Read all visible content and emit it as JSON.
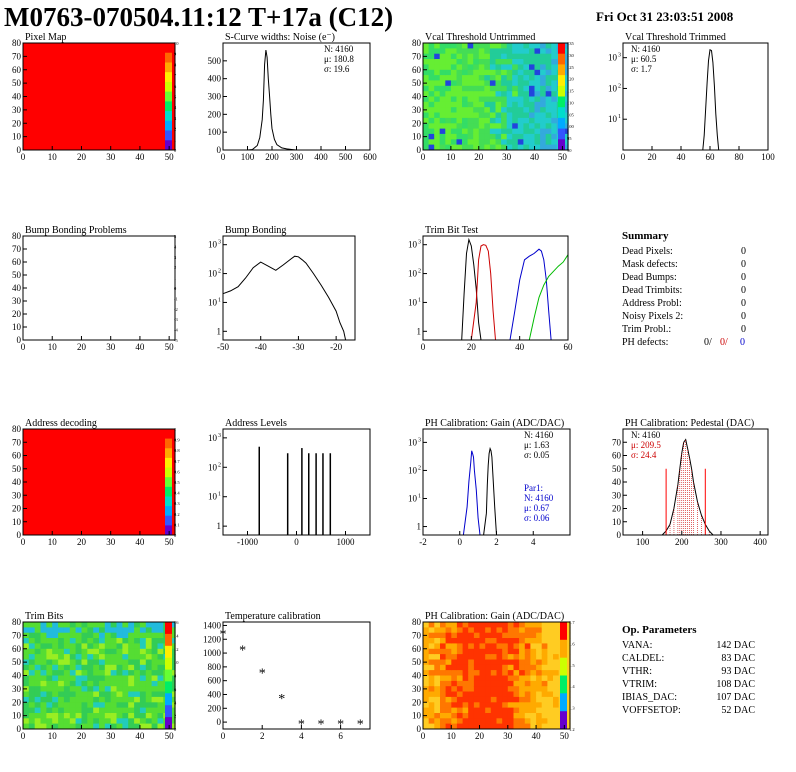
{
  "header": {
    "title": "M0763-070504.11:12 T+17a (C12)",
    "date": "Fri Oct 31 23:03:51 2008"
  },
  "summary": {
    "title": "Summary",
    "rows": [
      {
        "label": "Dead Pixels:",
        "value": "0"
      },
      {
        "label": "Mask defects:",
        "value": "0"
      },
      {
        "label": "Dead Bumps:",
        "value": "0"
      },
      {
        "label": "Dead Trimbits:",
        "value": "0"
      },
      {
        "label": "Address Probl:",
        "value": "0"
      },
      {
        "label": "Noisy Pixels 2:",
        "value": "0"
      },
      {
        "label": "Trim Probl.:",
        "value": "0"
      }
    ],
    "ph_label": "PH defects:",
    "ph_values": [
      {
        "text": "0/",
        "color": "#000000"
      },
      {
        "text": "0/",
        "color": "#cc0000"
      },
      {
        "text": "0",
        "color": "#0000cc"
      }
    ]
  },
  "op_parameters": {
    "title": "Op. Parameters",
    "rows": [
      {
        "label": "VANA:",
        "value": "142 DAC"
      },
      {
        "label": "CALDEL:",
        "value": "83 DAC"
      },
      {
        "label": "VTHR:",
        "value": "93 DAC"
      },
      {
        "label": "VTRIM:",
        "value": "108 DAC"
      },
      {
        "label": "IBIAS_DAC:",
        "value": "107 DAC"
      },
      {
        "label": "VOFFSETOP:",
        "value": "52 DAC"
      }
    ]
  },
  "colors": {
    "red": "#ff0000",
    "blue": "#0000cc",
    "green": "#00bb00",
    "dark_red": "#cc0000"
  },
  "chart_data": [
    {
      "id": "pixel-map",
      "type": "heatmap",
      "title": "Pixel Map",
      "xlim": [
        0,
        52
      ],
      "ylim": [
        0,
        80
      ],
      "xticks": [
        0,
        10,
        20,
        30,
        40,
        50
      ],
      "yticks": [
        0,
        10,
        20,
        30,
        40,
        50,
        60,
        70,
        80
      ],
      "fill": "uniform",
      "fill_color": "#ff0000",
      "palette_labels": [
        "10",
        "9",
        "8",
        "7",
        "6",
        "5",
        "4",
        "3",
        "2",
        "1",
        "0"
      ]
    },
    {
      "id": "scurve",
      "type": "line",
      "title": "S-Curve widths: Noise (e⁻)",
      "xlim": [
        0,
        600
      ],
      "ylim": [
        0,
        600
      ],
      "xticks": [
        0,
        100,
        200,
        300,
        400,
        500,
        600
      ],
      "yticks": [
        0,
        100,
        200,
        300,
        400,
        500
      ],
      "stats": [
        "N: 4160",
        "μ: 180.8",
        "σ: 19.6"
      ],
      "x": [
        100,
        120,
        140,
        150,
        160,
        165,
        170,
        175,
        180,
        185,
        190,
        195,
        200,
        210,
        220,
        240,
        260,
        280,
        300
      ],
      "y": [
        0,
        3,
        25,
        70,
        170,
        280,
        480,
        560,
        520,
        400,
        300,
        200,
        120,
        60,
        30,
        12,
        6,
        3,
        0
      ]
    },
    {
      "id": "vcal-untrimmed",
      "type": "heatmap",
      "title": "Vcal Threshold Untrimmed",
      "xlim": [
        0,
        52
      ],
      "ylim": [
        0,
        80
      ],
      "xticks": [
        0,
        10,
        20,
        30,
        40,
        50
      ],
      "yticks": [
        0,
        10,
        20,
        30,
        40,
        50,
        60,
        70,
        80
      ],
      "fill": "noise-gradient",
      "palette_labels": [
        "135",
        "130",
        "125",
        "120",
        "115",
        "110",
        "105",
        "100",
        "95",
        "90"
      ]
    },
    {
      "id": "vcal-trimmed",
      "type": "line",
      "title": "Vcal Threshold Trimmed",
      "yscale": "log",
      "xlim": [
        0,
        100
      ],
      "ylim": [
        1,
        3000
      ],
      "xticks": [
        0,
        20,
        40,
        60,
        80,
        100
      ],
      "yticks": [
        10,
        100,
        1000
      ],
      "stats": [
        "N: 4160",
        "μ: 60.5",
        "σ:  1.7"
      ],
      "x": [
        55,
        56,
        57,
        58,
        59,
        60,
        61,
        62,
        63,
        64,
        65,
        66
      ],
      "y": [
        1,
        3,
        20,
        150,
        800,
        1800,
        1700,
        700,
        120,
        15,
        3,
        1
      ]
    },
    {
      "id": "bump-problems",
      "type": "heatmap",
      "title": "Bump Bonding Problems",
      "xlim": [
        0,
        52
      ],
      "ylim": [
        0,
        80
      ],
      "xticks": [
        0,
        10,
        20,
        30,
        40,
        50
      ],
      "yticks": [
        0,
        10,
        20,
        30,
        40,
        50,
        60,
        70,
        80
      ],
      "fill": "empty",
      "palette_labels": [
        "5",
        "4",
        "3",
        "2",
        "1",
        "0",
        "-1",
        "-2",
        "-3",
        "-4",
        "-5"
      ]
    },
    {
      "id": "bump-bonding",
      "type": "line",
      "title": "Bump Bonding",
      "yscale": "log",
      "xlim": [
        -50,
        -15
      ],
      "ylim": [
        0.5,
        2000
      ],
      "xticks": [
        -50,
        -40,
        -30,
        -20
      ],
      "yticks": [
        1,
        10,
        100,
        1000
      ],
      "x": [
        -50,
        -48,
        -46,
        -44,
        -42,
        -40,
        -38,
        -36,
        -34,
        -32,
        -31,
        -30,
        -29,
        -28,
        -26,
        -24,
        -22,
        -20,
        -19,
        -18,
        -17.5
      ],
      "y": [
        20,
        25,
        35,
        70,
        160,
        250,
        180,
        130,
        200,
        320,
        400,
        380,
        300,
        230,
        100,
        40,
        15,
        5,
        2,
        1,
        0.5
      ]
    },
    {
      "id": "trim-bit-test",
      "type": "line",
      "title": "Trim Bit Test",
      "yscale": "log",
      "xlim": [
        0,
        60
      ],
      "ylim": [
        0.5,
        2000
      ],
      "xticks": [
        0,
        20,
        40,
        60
      ],
      "yticks": [
        1,
        10,
        100,
        1000
      ],
      "series": [
        {
          "color": "#000000",
          "x": [
            16,
            17,
            18,
            19,
            20,
            21,
            22,
            23,
            24
          ],
          "y": [
            0.5,
            20,
            500,
            1500,
            900,
            200,
            30,
            2,
            0.5
          ]
        },
        {
          "color": "#cc0000",
          "x": [
            20,
            22,
            23,
            24,
            25,
            26,
            27,
            28,
            29,
            30
          ],
          "y": [
            0.5,
            10,
            300,
            900,
            1000,
            950,
            600,
            100,
            5,
            0.5
          ]
        },
        {
          "color": "#0000cc",
          "x": [
            36,
            38,
            40,
            42,
            44,
            46,
            48,
            49,
            50,
            51,
            52,
            53
          ],
          "y": [
            0.5,
            5,
            60,
            300,
            400,
            500,
            700,
            600,
            300,
            60,
            5,
            0.5
          ]
        },
        {
          "color": "#00bb00",
          "x": [
            0,
            44,
            46,
            48,
            50,
            52,
            54,
            56,
            58,
            60
          ],
          "y": [
            0.5,
            0.5,
            3,
            15,
            40,
            80,
            120,
            180,
            250,
            450
          ]
        }
      ]
    },
    {
      "id": "address-decoding",
      "type": "heatmap",
      "title": "Address decoding",
      "xlim": [
        0,
        52
      ],
      "ylim": [
        0,
        80
      ],
      "xticks": [
        0,
        10,
        20,
        30,
        40,
        50
      ],
      "yticks": [
        0,
        10,
        20,
        30,
        40,
        50,
        60,
        70,
        80
      ],
      "fill": "uniform",
      "fill_color": "#ff0000",
      "palette_labels": [
        "1",
        "0.9",
        "0.8",
        "0.7",
        "0.6",
        "0.5",
        "0.4",
        "0.3",
        "0.2",
        "0.1",
        "0"
      ]
    },
    {
      "id": "address-levels",
      "type": "line",
      "title": "Address Levels",
      "yscale": "log",
      "xlim": [
        -1500,
        1500
      ],
      "ylim": [
        0.5,
        2000
      ],
      "xticks": [
        -1000,
        0,
        1000
      ],
      "yticks": [
        1,
        10,
        100,
        1000
      ],
      "spikes_x": [
        -760,
        -180,
        110,
        250,
        400,
        540,
        690
      ],
      "spikes_h": [
        500,
        300,
        450,
        300,
        300,
        300,
        300
      ]
    },
    {
      "id": "ph-gain",
      "type": "line",
      "title": "PH Calibration: Gain (ADC/DAC)",
      "yscale": "log",
      "xlim": [
        -2,
        6
      ],
      "ylim": [
        0.5,
        3000
      ],
      "xticks": [
        -2,
        0,
        2,
        4
      ],
      "yticks": [
        1,
        10,
        100,
        1000
      ],
      "stats": [
        "N: 4160",
        "μ: 1.63",
        "σ: 0.05"
      ],
      "stats2": [
        "Par1:",
        "N: 4160",
        "μ: 0.67",
        "σ: 0.06"
      ],
      "series": [
        {
          "color": "#000000",
          "x": [
            1.3,
            1.45,
            1.5,
            1.55,
            1.6,
            1.65,
            1.7,
            1.75,
            1.8,
            1.9,
            2.0
          ],
          "y": [
            0.5,
            3,
            30,
            150,
            400,
            600,
            500,
            300,
            80,
            5,
            0.5
          ]
        },
        {
          "color": "#0000cc",
          "x": [
            0.2,
            0.4,
            0.5,
            0.6,
            0.65,
            0.7,
            0.75,
            0.8,
            0.9,
            1.0,
            1.1
          ],
          "y": [
            0.5,
            5,
            40,
            200,
            500,
            400,
            300,
            100,
            20,
            2,
            0.5
          ]
        }
      ]
    },
    {
      "id": "ph-pedestal",
      "type": "line",
      "title": "PH Calibration: Pedestal (DAC)",
      "xlim": [
        50,
        420
      ],
      "ylim": [
        0,
        80
      ],
      "xticks": [
        100,
        200,
        300,
        400
      ],
      "yticks": [
        0,
        10,
        20,
        30,
        40,
        50,
        60,
        70
      ],
      "stats": [
        "N: 4160",
        "μ: 209.5",
        "σ: 24.4"
      ],
      "x": [
        150,
        160,
        170,
        180,
        190,
        195,
        200,
        205,
        210,
        215,
        220,
        225,
        230,
        240,
        250,
        260,
        270,
        280
      ],
      "y": [
        0,
        3,
        8,
        20,
        38,
        50,
        62,
        70,
        72,
        65,
        58,
        50,
        40,
        25,
        15,
        8,
        3,
        0
      ],
      "markers_x": [
        160,
        260
      ]
    },
    {
      "id": "trim-bits",
      "type": "heatmap",
      "title": "Trim Bits",
      "xlim": [
        0,
        52
      ],
      "ylim": [
        0,
        80
      ],
      "xticks": [
        0,
        10,
        20,
        30,
        40,
        50
      ],
      "yticks": [
        0,
        10,
        20,
        30,
        40,
        50,
        60,
        70,
        80
      ],
      "fill": "green-noise",
      "palette_labels": [
        "16",
        "14",
        "12",
        "10",
        "8",
        "6",
        "4",
        "2",
        "0"
      ]
    },
    {
      "id": "temperature",
      "type": "scatter",
      "title": "Temperature calibration",
      "xlim": [
        0,
        7.5
      ],
      "ylim": [
        -100,
        1450
      ],
      "xticks": [
        0,
        2,
        4,
        6
      ],
      "yticks": [
        0,
        200,
        400,
        600,
        800,
        1000,
        1200,
        1400
      ],
      "x": [
        0,
        1,
        2,
        3,
        4,
        5,
        6,
        7
      ],
      "y": [
        1280,
        1050,
        720,
        350,
        -20,
        -20,
        -20,
        -20
      ]
    },
    {
      "id": "ph-gain-map",
      "type": "heatmap",
      "title": "PH Calibration: Gain (ADC/DAC)",
      "xlim": [
        0,
        52
      ],
      "ylim": [
        0,
        80
      ],
      "xticks": [
        0,
        10,
        20,
        30,
        40,
        50
      ],
      "yticks": [
        0,
        10,
        20,
        30,
        40,
        50,
        60,
        70,
        80
      ],
      "fill": "orange-gradient",
      "palette_labels": [
        "1.7",
        "1.6",
        "1.5",
        "1.4",
        "1.3",
        "1.2"
      ]
    }
  ]
}
